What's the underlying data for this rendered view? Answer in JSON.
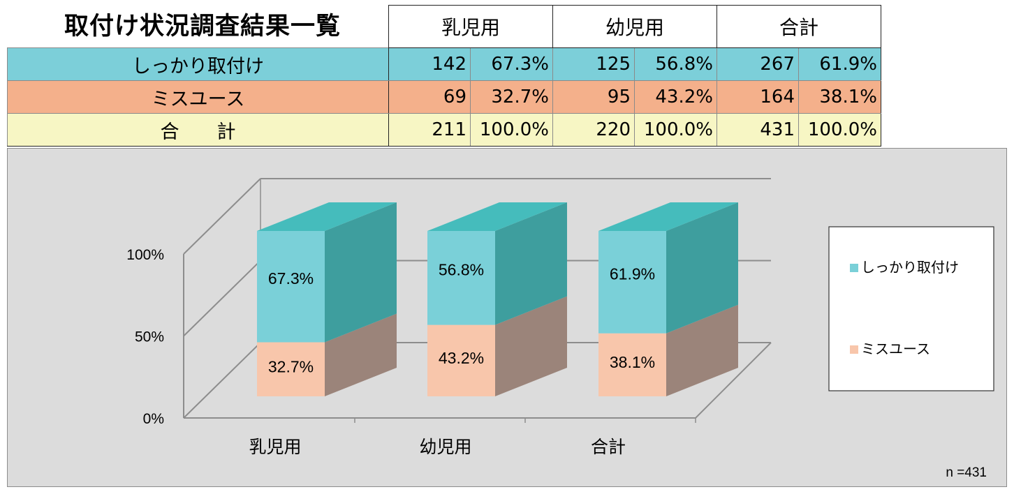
{
  "title": "取付け状況調査結果一覧",
  "table": {
    "groups": [
      "乳児用",
      "幼児用",
      "合計"
    ],
    "rows": [
      {
        "label": "しっかり取付け",
        "cells": [
          "142",
          "67.3%",
          "125",
          "56.8%",
          "267",
          "61.9%"
        ]
      },
      {
        "label": "ミスユース",
        "cells": [
          "69",
          "32.7%",
          "95",
          "43.2%",
          "164",
          "38.1%"
        ]
      },
      {
        "label": "合　　計",
        "cells": [
          "211",
          "100.0%",
          "220",
          "100.0%",
          "431",
          "100.0%"
        ]
      }
    ]
  },
  "chart_data": {
    "type": "bar",
    "stacked": true,
    "three_d": true,
    "categories": [
      "乳児用",
      "幼児用",
      "合計"
    ],
    "series": [
      {
        "name": "ミスユース",
        "values": [
          32.7,
          43.2,
          38.1
        ],
        "labels": [
          "32.7%",
          "43.2%",
          "38.1%"
        ],
        "color": "#f8c6ab",
        "side_color": "#9b847a"
      },
      {
        "name": "しっかり取付け",
        "values": [
          67.3,
          56.8,
          61.9
        ],
        "labels": [
          "67.3%",
          "56.8%",
          "61.9%"
        ],
        "color": "#7ad0d8",
        "side_color": "#3e9e9e",
        "top_color": "#45bcbc"
      }
    ],
    "yticks": [
      "0%",
      "50%",
      "100%"
    ],
    "ylim": [
      0,
      100
    ],
    "grid": true,
    "legend_position": "right",
    "note": "n =431"
  }
}
